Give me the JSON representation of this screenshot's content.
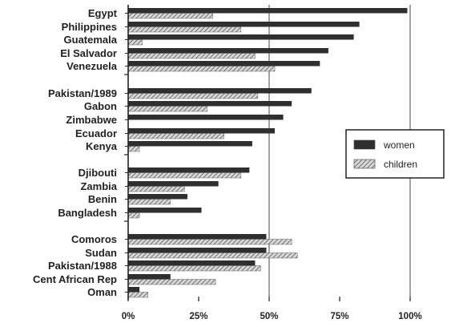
{
  "chart_data": {
    "type": "bar",
    "orientation": "horizontal",
    "title": "",
    "xlabel": "",
    "ylabel": "",
    "xlim": [
      0,
      100
    ],
    "x_ticks": [
      "0%",
      "25%",
      "50%",
      "75%",
      "100%"
    ],
    "grid": "vertical lines at 50% and 100%",
    "legend_position": "right",
    "groups": [
      {
        "categories": [
          "Egypt",
          "Philippines",
          "Guatemala",
          "El Salvador",
          "Venezuela"
        ],
        "series": [
          {
            "name": "women",
            "values": [
              99,
              82,
              80,
              71,
              68
            ]
          },
          {
            "name": "children",
            "values": [
              30,
              40,
              5,
              45,
              52
            ]
          }
        ]
      },
      {
        "categories": [
          "Pakistan/1989",
          "Gabon",
          "Zimbabwe",
          "Ecuador",
          "Kenya"
        ],
        "series": [
          {
            "name": "women",
            "values": [
              65,
              58,
              55,
              52,
              44
            ]
          },
          {
            "name": "children",
            "values": [
              46,
              28,
              0,
              34,
              4
            ]
          }
        ]
      },
      {
        "categories": [
          "Djibouti",
          "Zambia",
          "Benin",
          "Bangladesh"
        ],
        "series": [
          {
            "name": "women",
            "values": [
              43,
              32,
              21,
              26
            ]
          },
          {
            "name": "children",
            "values": [
              40,
              20,
              15,
              4
            ]
          }
        ]
      },
      {
        "categories": [
          "Comoros",
          "Sudan",
          "Pakistan/1988",
          "Cent African Rep",
          "Oman"
        ],
        "series": [
          {
            "name": "women",
            "values": [
              49,
              49,
              45,
              15,
              4
            ]
          },
          {
            "name": "children",
            "values": [
              58,
              60,
              47,
              31,
              7
            ]
          }
        ]
      }
    ],
    "legend": [
      {
        "name": "women",
        "color": "#2f2f2f"
      },
      {
        "name": "children",
        "color": "hatched grey"
      }
    ]
  }
}
